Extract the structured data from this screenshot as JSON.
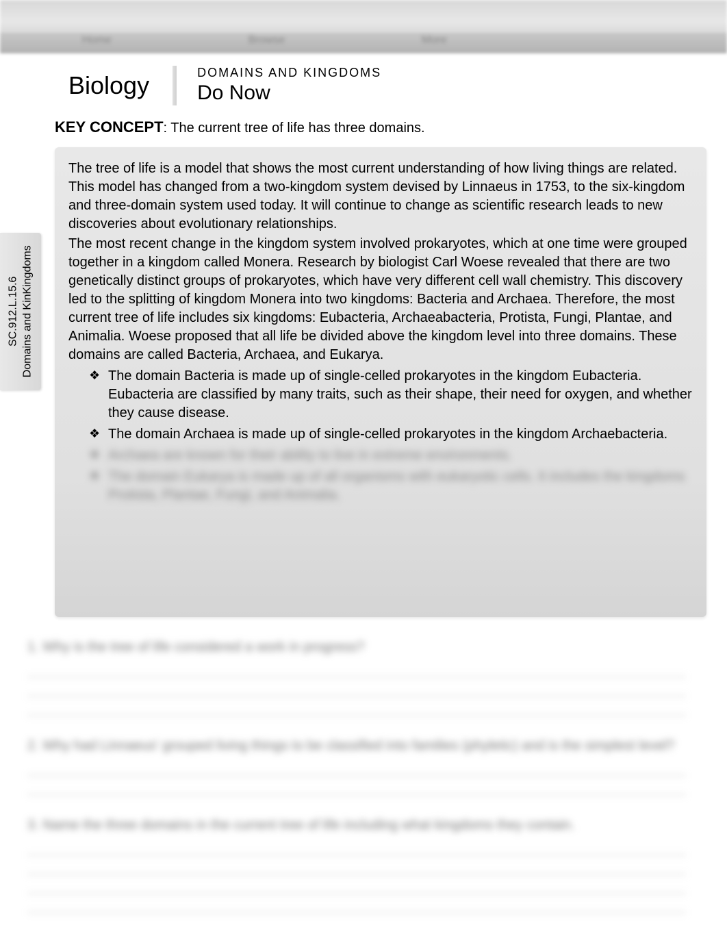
{
  "sidebar": {
    "code": "SC.912.L.15.6",
    "topic": "Domains and KinKingdoms"
  },
  "header": {
    "subject": "Biology",
    "topic": "DOMAINS AND KINGDOMS",
    "activity": "Do Now"
  },
  "key_concept": {
    "label": "KEY CONCEPT",
    "text": "The current tree of life has three domains."
  },
  "content": {
    "paragraph1": "The tree of life is a model that shows the most current understanding of how living things are related. This model has changed from a two-kingdom system devised by Linnaeus in 1753, to the six-kingdom and three-domain system used today.  It will continue to change as scientific research leads to new discoveries about evolutionary relationships.",
    "paragraph2": "The most recent change in the kingdom system involved prokaryotes, which at one time were grouped together in a kingdom called Monera. Research by biologist Carl Woese revealed that there are two genetically distinct groups of prokaryotes, which have very different cell wall chemistry. This discovery led to the splitting of kingdom Monera into two kingdoms: Bacteria and Archaea. Therefore, the most current tree of life includes six kingdoms: Eubacteria, Archaeabacteria, Protista, Fungi, Plantae, and Animalia. Woese proposed that all life be divided above the kingdom level into three domains. These domains are called Bacteria, Archaea, and Eukarya.",
    "bullets": [
      "The domain Bacteria is made up of single-celled prokaryotes in the kingdom Eubacteria. Eubacteria are classified by many traits, such as their shape, their need for oxygen, and whether they cause disease.",
      "The domain Archaea is made up of single-celled prokaryotes in the kingdom Archaebacteria."
    ],
    "blurred_bullets": [
      "Archaea are known for their ability to live in extreme environments.",
      "The domain Eukarya is made up of all organisms with eukaryotic cells. It includes the kingdoms Protista, Plantae, Fungi, and Animalia."
    ]
  },
  "questions": {
    "q1": "1. Why is the tree of life considered a work in progress?",
    "q2": "2. Why had Linnaeus' grouped living things to be classified into families (phyletic) and is the simplest level?",
    "q3": "3. Name the three domains in the current tree of life including what kingdoms they contain."
  },
  "colors": {
    "background": "#ffffff",
    "content_box_bg": "#e5e5e5",
    "text": "#000000",
    "blurred_text": "#888888",
    "line_color": "#bbbbbb"
  },
  "fonts": {
    "body_family": "Arial, Helvetica, sans-serif",
    "body_size": 20,
    "title_size": 36,
    "topic_size": 18,
    "activity_size": 30,
    "key_concept_size": 22
  }
}
